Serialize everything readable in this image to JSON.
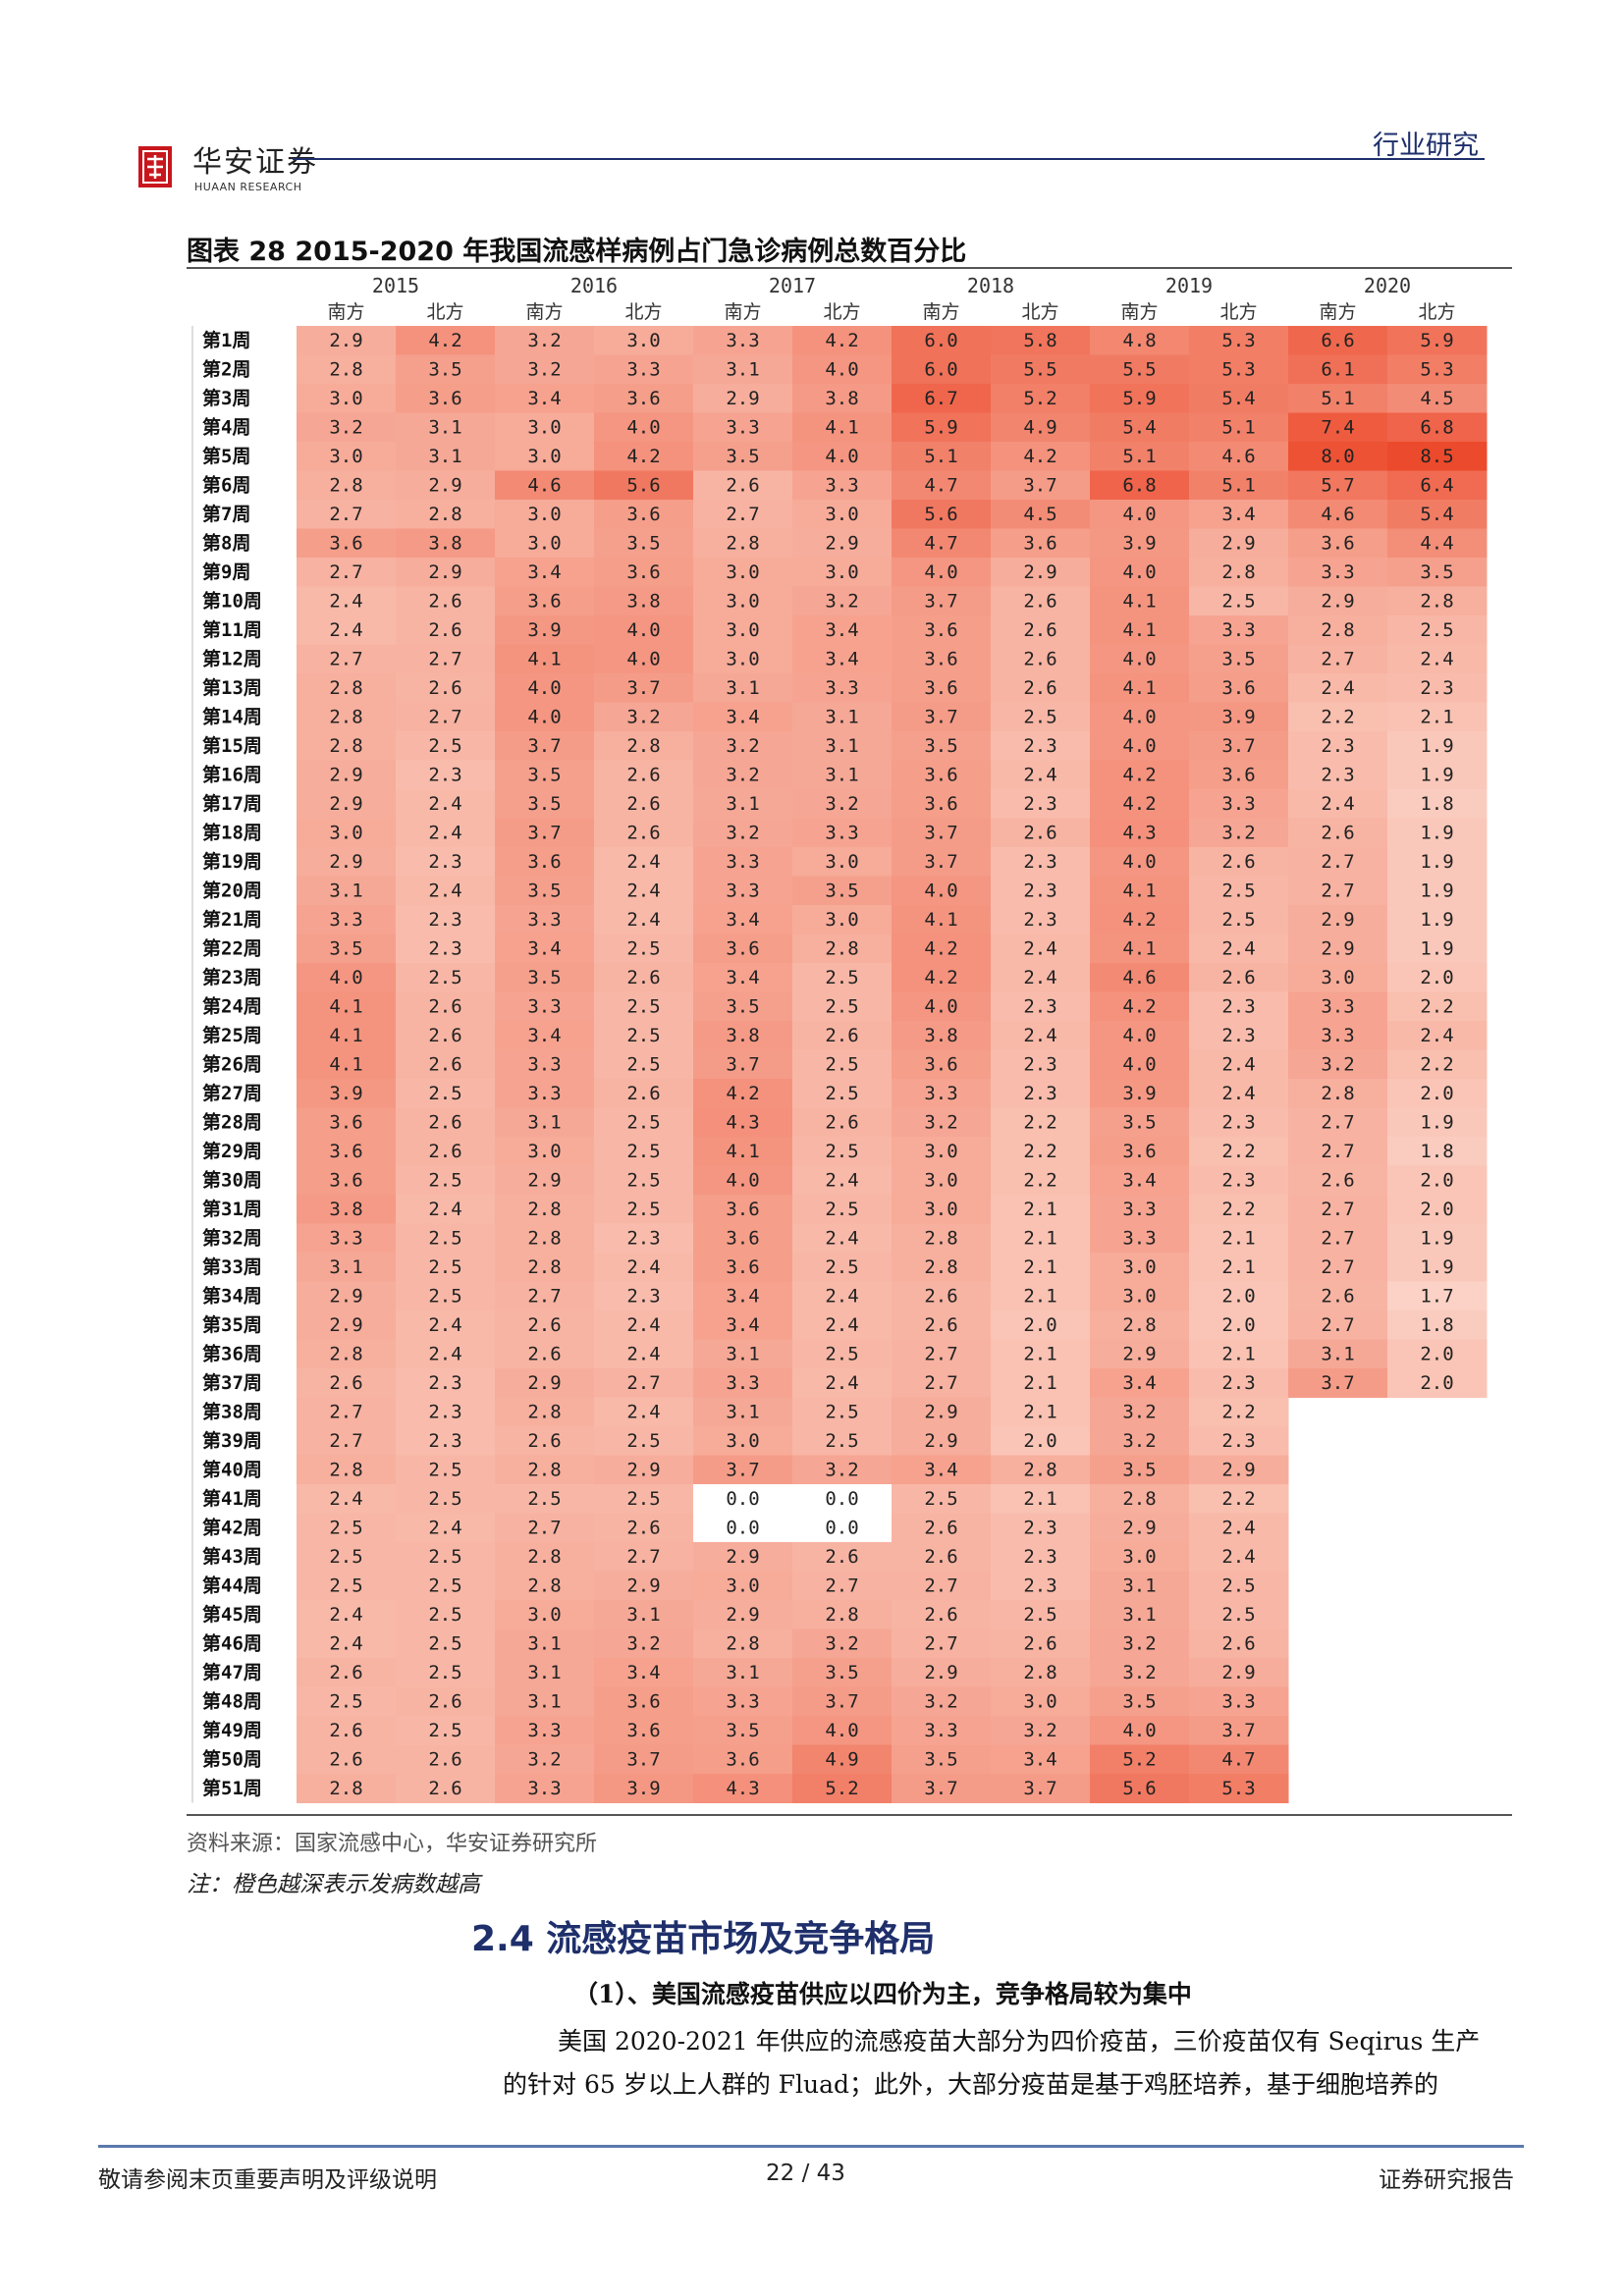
{
  "header": {
    "logo_cn": "华安证券",
    "logo_en": "HUAAN RESEARCH",
    "section_label": "行业研究"
  },
  "figure": {
    "title": "图表  28 2015-2020 年我国流感样病例占门急诊病例总数百分比",
    "source": "资料来源：国家流感中心，华安证券研究所",
    "note": "注：橙色越深表示发病数越高"
  },
  "chart_data": {
    "type": "heatmap",
    "years": [
      "2015",
      "2016",
      "2017",
      "2018",
      "2019",
      "2020"
    ],
    "regions": [
      "南方",
      "北方"
    ],
    "weeks": [
      "第1周",
      "第2周",
      "第3周",
      "第4周",
      "第5周",
      "第6周",
      "第7周",
      "第8周",
      "第9周",
      "第10周",
      "第11周",
      "第12周",
      "第13周",
      "第14周",
      "第15周",
      "第16周",
      "第17周",
      "第18周",
      "第19周",
      "第20周",
      "第21周",
      "第22周",
      "第23周",
      "第24周",
      "第25周",
      "第26周",
      "第27周",
      "第28周",
      "第29周",
      "第30周",
      "第31周",
      "第32周",
      "第33周",
      "第34周",
      "第35周",
      "第36周",
      "第37周",
      "第38周",
      "第39周",
      "第40周",
      "第41周",
      "第42周",
      "第43周",
      "第44周",
      "第45周",
      "第46周",
      "第47周",
      "第48周",
      "第49周",
      "第50周",
      "第51周"
    ],
    "colors": {
      "low": "#fbd2c5",
      "high": "#ec4a2c",
      "empty": "#ffffff"
    },
    "values": [
      [
        [
          2.9,
          4.2
        ],
        [
          3.2,
          3.0
        ],
        [
          3.3,
          4.2
        ],
        [
          6.0,
          5.8
        ],
        [
          4.8,
          5.3
        ],
        [
          6.6,
          5.9
        ]
      ],
      [
        [
          2.8,
          3.5
        ],
        [
          3.2,
          3.3
        ],
        [
          3.1,
          4.0
        ],
        [
          6.0,
          5.5
        ],
        [
          5.5,
          5.3
        ],
        [
          6.1,
          5.3
        ]
      ],
      [
        [
          3.0,
          3.6
        ],
        [
          3.4,
          3.6
        ],
        [
          2.9,
          3.8
        ],
        [
          6.7,
          5.2
        ],
        [
          5.9,
          5.4
        ],
        [
          5.1,
          4.5
        ]
      ],
      [
        [
          3.2,
          3.1
        ],
        [
          3.0,
          4.0
        ],
        [
          3.3,
          4.1
        ],
        [
          5.9,
          4.9
        ],
        [
          5.4,
          5.1
        ],
        [
          7.4,
          6.8
        ]
      ],
      [
        [
          3.0,
          3.1
        ],
        [
          3.0,
          4.2
        ],
        [
          3.5,
          4.0
        ],
        [
          5.1,
          4.2
        ],
        [
          5.1,
          4.6
        ],
        [
          8.0,
          8.5
        ]
      ],
      [
        [
          2.8,
          2.9
        ],
        [
          4.6,
          5.6
        ],
        [
          2.6,
          3.3
        ],
        [
          4.7,
          3.7
        ],
        [
          6.8,
          5.1
        ],
        [
          5.7,
          6.4
        ]
      ],
      [
        [
          2.7,
          2.8
        ],
        [
          3.0,
          3.6
        ],
        [
          2.7,
          3.0
        ],
        [
          5.6,
          4.5
        ],
        [
          4.0,
          3.4
        ],
        [
          4.6,
          5.4
        ]
      ],
      [
        [
          3.6,
          3.8
        ],
        [
          3.0,
          3.5
        ],
        [
          2.8,
          2.9
        ],
        [
          4.7,
          3.6
        ],
        [
          3.9,
          2.9
        ],
        [
          3.6,
          4.4
        ]
      ],
      [
        [
          2.7,
          2.9
        ],
        [
          3.4,
          3.6
        ],
        [
          3.0,
          3.0
        ],
        [
          4.0,
          2.9
        ],
        [
          4.0,
          2.8
        ],
        [
          3.3,
          3.5
        ]
      ],
      [
        [
          2.4,
          2.6
        ],
        [
          3.6,
          3.8
        ],
        [
          3.0,
          3.2
        ],
        [
          3.7,
          2.6
        ],
        [
          4.1,
          2.5
        ],
        [
          2.9,
          2.8
        ]
      ],
      [
        [
          2.4,
          2.6
        ],
        [
          3.9,
          4.0
        ],
        [
          3.0,
          3.4
        ],
        [
          3.6,
          2.6
        ],
        [
          4.1,
          3.3
        ],
        [
          2.8,
          2.5
        ]
      ],
      [
        [
          2.7,
          2.7
        ],
        [
          4.1,
          4.0
        ],
        [
          3.0,
          3.4
        ],
        [
          3.6,
          2.6
        ],
        [
          4.0,
          3.5
        ],
        [
          2.7,
          2.4
        ]
      ],
      [
        [
          2.8,
          2.6
        ],
        [
          4.0,
          3.7
        ],
        [
          3.1,
          3.3
        ],
        [
          3.6,
          2.6
        ],
        [
          4.1,
          3.6
        ],
        [
          2.4,
          2.3
        ]
      ],
      [
        [
          2.8,
          2.7
        ],
        [
          4.0,
          3.2
        ],
        [
          3.4,
          3.1
        ],
        [
          3.7,
          2.5
        ],
        [
          4.0,
          3.9
        ],
        [
          2.2,
          2.1
        ]
      ],
      [
        [
          2.8,
          2.5
        ],
        [
          3.7,
          2.8
        ],
        [
          3.2,
          3.1
        ],
        [
          3.5,
          2.3
        ],
        [
          4.0,
          3.7
        ],
        [
          2.3,
          1.9
        ]
      ],
      [
        [
          2.9,
          2.3
        ],
        [
          3.5,
          2.6
        ],
        [
          3.2,
          3.1
        ],
        [
          3.6,
          2.4
        ],
        [
          4.2,
          3.6
        ],
        [
          2.3,
          1.9
        ]
      ],
      [
        [
          2.9,
          2.4
        ],
        [
          3.5,
          2.6
        ],
        [
          3.1,
          3.2
        ],
        [
          3.6,
          2.3
        ],
        [
          4.2,
          3.3
        ],
        [
          2.4,
          1.8
        ]
      ],
      [
        [
          3.0,
          2.4
        ],
        [
          3.7,
          2.6
        ],
        [
          3.2,
          3.3
        ],
        [
          3.7,
          2.6
        ],
        [
          4.3,
          3.2
        ],
        [
          2.6,
          1.9
        ]
      ],
      [
        [
          2.9,
          2.3
        ],
        [
          3.6,
          2.4
        ],
        [
          3.3,
          3.0
        ],
        [
          3.7,
          2.3
        ],
        [
          4.0,
          2.6
        ],
        [
          2.7,
          1.9
        ]
      ],
      [
        [
          3.1,
          2.4
        ],
        [
          3.5,
          2.4
        ],
        [
          3.3,
          3.5
        ],
        [
          4.0,
          2.3
        ],
        [
          4.1,
          2.5
        ],
        [
          2.7,
          1.9
        ]
      ],
      [
        [
          3.3,
          2.3
        ],
        [
          3.3,
          2.4
        ],
        [
          3.4,
          3.0
        ],
        [
          4.1,
          2.3
        ],
        [
          4.2,
          2.5
        ],
        [
          2.9,
          1.9
        ]
      ],
      [
        [
          3.5,
          2.3
        ],
        [
          3.4,
          2.5
        ],
        [
          3.6,
          2.8
        ],
        [
          4.2,
          2.4
        ],
        [
          4.1,
          2.4
        ],
        [
          2.9,
          1.9
        ]
      ],
      [
        [
          4.0,
          2.5
        ],
        [
          3.5,
          2.6
        ],
        [
          3.4,
          2.5
        ],
        [
          4.2,
          2.4
        ],
        [
          4.6,
          2.6
        ],
        [
          3.0,
          2.0
        ]
      ],
      [
        [
          4.1,
          2.6
        ],
        [
          3.3,
          2.5
        ],
        [
          3.5,
          2.5
        ],
        [
          4.0,
          2.3
        ],
        [
          4.2,
          2.3
        ],
        [
          3.3,
          2.2
        ]
      ],
      [
        [
          4.1,
          2.6
        ],
        [
          3.4,
          2.5
        ],
        [
          3.8,
          2.6
        ],
        [
          3.8,
          2.4
        ],
        [
          4.0,
          2.3
        ],
        [
          3.3,
          2.4
        ]
      ],
      [
        [
          4.1,
          2.6
        ],
        [
          3.3,
          2.5
        ],
        [
          3.7,
          2.5
        ],
        [
          3.6,
          2.3
        ],
        [
          4.0,
          2.4
        ],
        [
          3.2,
          2.2
        ]
      ],
      [
        [
          3.9,
          2.5
        ],
        [
          3.3,
          2.6
        ],
        [
          4.2,
          2.5
        ],
        [
          3.3,
          2.3
        ],
        [
          3.9,
          2.4
        ],
        [
          2.8,
          2.0
        ]
      ],
      [
        [
          3.6,
          2.6
        ],
        [
          3.1,
          2.5
        ],
        [
          4.3,
          2.6
        ],
        [
          3.2,
          2.2
        ],
        [
          3.5,
          2.3
        ],
        [
          2.7,
          1.9
        ]
      ],
      [
        [
          3.6,
          2.6
        ],
        [
          3.0,
          2.5
        ],
        [
          4.1,
          2.5
        ],
        [
          3.0,
          2.2
        ],
        [
          3.6,
          2.2
        ],
        [
          2.7,
          1.8
        ]
      ],
      [
        [
          3.6,
          2.5
        ],
        [
          2.9,
          2.5
        ],
        [
          4.0,
          2.4
        ],
        [
          3.0,
          2.2
        ],
        [
          3.4,
          2.3
        ],
        [
          2.6,
          2.0
        ]
      ],
      [
        [
          3.8,
          2.4
        ],
        [
          2.8,
          2.5
        ],
        [
          3.6,
          2.5
        ],
        [
          3.0,
          2.1
        ],
        [
          3.3,
          2.2
        ],
        [
          2.7,
          2.0
        ]
      ],
      [
        [
          3.3,
          2.5
        ],
        [
          2.8,
          2.3
        ],
        [
          3.6,
          2.4
        ],
        [
          2.8,
          2.1
        ],
        [
          3.3,
          2.1
        ],
        [
          2.7,
          1.9
        ]
      ],
      [
        [
          3.1,
          2.5
        ],
        [
          2.8,
          2.4
        ],
        [
          3.6,
          2.5
        ],
        [
          2.8,
          2.1
        ],
        [
          3.0,
          2.1
        ],
        [
          2.7,
          1.9
        ]
      ],
      [
        [
          2.9,
          2.5
        ],
        [
          2.7,
          2.3
        ],
        [
          3.4,
          2.4
        ],
        [
          2.6,
          2.1
        ],
        [
          3.0,
          2.0
        ],
        [
          2.6,
          1.7
        ]
      ],
      [
        [
          2.9,
          2.4
        ],
        [
          2.6,
          2.4
        ],
        [
          3.4,
          2.4
        ],
        [
          2.6,
          2.0
        ],
        [
          2.8,
          2.0
        ],
        [
          2.7,
          1.8
        ]
      ],
      [
        [
          2.8,
          2.4
        ],
        [
          2.6,
          2.4
        ],
        [
          3.1,
          2.5
        ],
        [
          2.7,
          2.1
        ],
        [
          2.9,
          2.1
        ],
        [
          3.1,
          2.0
        ]
      ],
      [
        [
          2.6,
          2.3
        ],
        [
          2.9,
          2.7
        ],
        [
          3.3,
          2.4
        ],
        [
          2.7,
          2.1
        ],
        [
          3.4,
          2.3
        ],
        [
          3.7,
          2.0
        ]
      ],
      [
        [
          2.7,
          2.3
        ],
        [
          2.8,
          2.4
        ],
        [
          3.1,
          2.5
        ],
        [
          2.9,
          2.1
        ],
        [
          3.2,
          2.2
        ],
        null
      ],
      [
        [
          2.7,
          2.3
        ],
        [
          2.6,
          2.5
        ],
        [
          3.0,
          2.5
        ],
        [
          2.9,
          2.0
        ],
        [
          3.2,
          2.3
        ],
        null
      ],
      [
        [
          2.8,
          2.5
        ],
        [
          2.8,
          2.9
        ],
        [
          3.7,
          3.2
        ],
        [
          3.4,
          2.8
        ],
        [
          3.5,
          2.9
        ],
        null
      ],
      [
        [
          2.4,
          2.5
        ],
        [
          2.5,
          2.5
        ],
        [
          0.0,
          0.0
        ],
        [
          2.5,
          2.1
        ],
        [
          2.8,
          2.2
        ],
        null
      ],
      [
        [
          2.5,
          2.4
        ],
        [
          2.7,
          2.6
        ],
        [
          0.0,
          0.0
        ],
        [
          2.6,
          2.3
        ],
        [
          2.9,
          2.4
        ],
        null
      ],
      [
        [
          2.5,
          2.5
        ],
        [
          2.8,
          2.7
        ],
        [
          2.9,
          2.6
        ],
        [
          2.6,
          2.3
        ],
        [
          3.0,
          2.4
        ],
        null
      ],
      [
        [
          2.5,
          2.5
        ],
        [
          2.8,
          2.9
        ],
        [
          3.0,
          2.7
        ],
        [
          2.7,
          2.3
        ],
        [
          3.1,
          2.5
        ],
        null
      ],
      [
        [
          2.4,
          2.5
        ],
        [
          3.0,
          3.1
        ],
        [
          2.9,
          2.8
        ],
        [
          2.6,
          2.5
        ],
        [
          3.1,
          2.5
        ],
        null
      ],
      [
        [
          2.4,
          2.5
        ],
        [
          3.1,
          3.2
        ],
        [
          2.8,
          3.2
        ],
        [
          2.7,
          2.6
        ],
        [
          3.2,
          2.6
        ],
        null
      ],
      [
        [
          2.6,
          2.5
        ],
        [
          3.1,
          3.4
        ],
        [
          3.1,
          3.5
        ],
        [
          2.9,
          2.8
        ],
        [
          3.2,
          2.9
        ],
        null
      ],
      [
        [
          2.5,
          2.6
        ],
        [
          3.1,
          3.6
        ],
        [
          3.3,
          3.7
        ],
        [
          3.2,
          3.0
        ],
        [
          3.5,
          3.3
        ],
        null
      ],
      [
        [
          2.6,
          2.5
        ],
        [
          3.3,
          3.6
        ],
        [
          3.5,
          4.0
        ],
        [
          3.3,
          3.2
        ],
        [
          4.0,
          3.7
        ],
        null
      ],
      [
        [
          2.6,
          2.6
        ],
        [
          3.2,
          3.7
        ],
        [
          3.6,
          4.9
        ],
        [
          3.5,
          3.4
        ],
        [
          5.2,
          4.7
        ],
        null
      ],
      [
        [
          2.8,
          2.6
        ],
        [
          3.3,
          3.9
        ],
        [
          4.3,
          5.2
        ],
        [
          3.7,
          3.7
        ],
        [
          5.6,
          5.3
        ],
        null
      ]
    ]
  },
  "section": {
    "title": "2.4 流感疫苗市场及竞争格局",
    "subtitle": "（1）、美国流感疫苗供应以四价为主，竞争格局较为集中",
    "para_line1": "美国 2020-2021 年供应的流感疫苗大部分为四价疫苗，三价疫苗仅有 Seqirus 生产",
    "para_line2": "的针对 65 岁以上人群的 Fluad；此外，大部分疫苗是基于鸡胚培养，基于细胞培养的"
  },
  "footer": {
    "left": "敬请参阅末页重要声明及评级说明",
    "page": "22 / 43",
    "right": "证券研究报告"
  }
}
